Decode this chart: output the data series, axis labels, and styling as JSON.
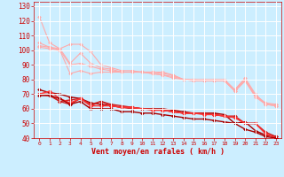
{
  "xlabel": "Vent moyen/en rafales ( km/h )",
  "background_color": "#cceeff",
  "grid_color": "#ffffff",
  "x_ticks": [
    0,
    1,
    2,
    3,
    4,
    5,
    6,
    7,
    8,
    9,
    10,
    11,
    12,
    13,
    14,
    15,
    16,
    17,
    18,
    19,
    20,
    21,
    22,
    23
  ],
  "ylim": [
    40,
    133
  ],
  "yticks": [
    40,
    50,
    60,
    70,
    80,
    90,
    100,
    110,
    120,
    130
  ],
  "series": [
    {
      "x": [
        0,
        1,
        2,
        3,
        4,
        5,
        6,
        7,
        8,
        9,
        10,
        11,
        12,
        13,
        14,
        15,
        16,
        17,
        18,
        19,
        20,
        21,
        22,
        23
      ],
      "y": [
        123,
        105,
        101,
        104,
        104,
        99,
        90,
        88,
        86,
        86,
        85,
        85,
        85,
        83,
        80,
        80,
        80,
        80,
        80,
        73,
        81,
        70,
        63,
        63
      ],
      "color": "#ffaaaa",
      "lw": 0.8,
      "ms": 2.0
    },
    {
      "x": [
        0,
        1,
        2,
        3,
        4,
        5,
        6,
        7,
        8,
        9,
        10,
        11,
        12,
        13,
        14,
        15,
        16,
        17,
        18,
        19,
        20,
        21,
        22,
        23
      ],
      "y": [
        105,
        102,
        101,
        91,
        98,
        91,
        88,
        87,
        85,
        85,
        85,
        85,
        84,
        83,
        80,
        80,
        79,
        79,
        79,
        73,
        80,
        69,
        64,
        63
      ],
      "color": "#ffaaaa",
      "lw": 0.8,
      "ms": 2.0
    },
    {
      "x": [
        0,
        1,
        2,
        3,
        4,
        5,
        6,
        7,
        8,
        9,
        10,
        11,
        12,
        13,
        14,
        15,
        16,
        17,
        18,
        19,
        20,
        21,
        22,
        23
      ],
      "y": [
        103,
        102,
        100,
        90,
        91,
        89,
        87,
        86,
        85,
        85,
        85,
        84,
        83,
        82,
        80,
        79,
        79,
        79,
        79,
        72,
        79,
        69,
        63,
        62
      ],
      "color": "#ffaaaa",
      "lw": 0.8,
      "ms": 2.0
    },
    {
      "x": [
        0,
        1,
        2,
        3,
        4,
        5,
        6,
        7,
        8,
        9,
        10,
        11,
        12,
        13,
        14,
        15,
        16,
        17,
        18,
        19,
        20,
        21,
        22,
        23
      ],
      "y": [
        102,
        101,
        100,
        84,
        86,
        84,
        85,
        85,
        85,
        85,
        85,
        84,
        83,
        81,
        80,
        79,
        79,
        79,
        79,
        72,
        79,
        68,
        63,
        62
      ],
      "color": "#ffaaaa",
      "lw": 0.8,
      "ms": 2.0
    },
    {
      "x": [
        0,
        1,
        2,
        3,
        4,
        5,
        6,
        7,
        8,
        9,
        10,
        11,
        12,
        13,
        14,
        15,
        16,
        17,
        18,
        19,
        20,
        21,
        22,
        23
      ],
      "y": [
        73,
        71,
        70,
        68,
        67,
        64,
        63,
        62,
        61,
        61,
        60,
        60,
        60,
        59,
        58,
        57,
        57,
        57,
        56,
        50,
        51,
        45,
        42,
        41
      ],
      "color": "#aa0000",
      "lw": 1.0,
      "ms": 2.0
    },
    {
      "x": [
        0,
        1,
        2,
        3,
        4,
        5,
        6,
        7,
        8,
        9,
        10,
        11,
        12,
        13,
        14,
        15,
        16,
        17,
        18,
        19,
        20,
        21,
        22,
        23
      ],
      "y": [
        70,
        69,
        65,
        63,
        67,
        63,
        65,
        63,
        62,
        61,
        60,
        60,
        59,
        58,
        57,
        57,
        57,
        56,
        55,
        55,
        50,
        50,
        44,
        41
      ],
      "color": "#cc2222",
      "lw": 1.0,
      "ms": 2.0
    },
    {
      "x": [
        0,
        1,
        2,
        3,
        4,
        5,
        6,
        7,
        8,
        9,
        10,
        11,
        12,
        13,
        14,
        15,
        16,
        17,
        18,
        19,
        20,
        21,
        22,
        23
      ],
      "y": [
        70,
        70,
        65,
        66,
        67,
        62,
        65,
        62,
        61,
        60,
        60,
        60,
        59,
        58,
        57,
        57,
        57,
        56,
        55,
        54,
        50,
        50,
        43,
        40
      ],
      "color": "#cc2222",
      "lw": 1.0,
      "ms": 2.0
    },
    {
      "x": [
        0,
        1,
        2,
        3,
        4,
        5,
        6,
        7,
        8,
        9,
        10,
        11,
        12,
        13,
        14,
        15,
        16,
        17,
        18,
        19,
        20,
        21,
        22,
        23
      ],
      "y": [
        70,
        72,
        67,
        64,
        67,
        62,
        62,
        62,
        61,
        61,
        60,
        59,
        59,
        58,
        57,
        57,
        56,
        56,
        55,
        54,
        50,
        50,
        43,
        40
      ],
      "color": "#ff3333",
      "lw": 1.0,
      "ms": 2.0
    },
    {
      "x": [
        0,
        1,
        2,
        3,
        4,
        5,
        6,
        7,
        8,
        9,
        10,
        11,
        12,
        13,
        14,
        15,
        16,
        17,
        18,
        19,
        20,
        21,
        22,
        23
      ],
      "y": [
        69,
        69,
        67,
        63,
        65,
        60,
        60,
        60,
        58,
        58,
        57,
        57,
        56,
        55,
        54,
        53,
        53,
        52,
        51,
        50,
        46,
        44,
        41,
        40
      ],
      "color": "#aa0000",
      "lw": 1.0,
      "ms": 2.0
    }
  ]
}
